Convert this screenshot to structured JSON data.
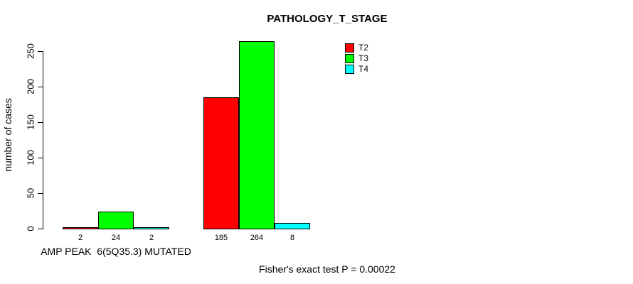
{
  "chart_data": {
    "type": "bar",
    "title": "PATHOLOGY_T_STAGE",
    "ylabel": "number of cases",
    "xlabel": "",
    "categories": [
      "AMP PEAK  6(5Q35.3) MUTATED",
      ""
    ],
    "series": [
      {
        "name": "T2",
        "color": "#ff0000",
        "values": [
          2,
          185
        ]
      },
      {
        "name": "T3",
        "color": "#00ff00",
        "values": [
          24,
          264
        ]
      },
      {
        "name": "T4",
        "color": "#00ffff",
        "values": [
          2,
          8
        ]
      }
    ],
    "bar_value_labels": [
      [
        2,
        24,
        2
      ],
      [
        185,
        264,
        8
      ]
    ],
    "ylim": [
      0,
      250
    ],
    "yticks": [
      0,
      50,
      100,
      150,
      200,
      250
    ],
    "bar_border_color": "#000000",
    "grid": false,
    "legend": {
      "position": "top-right-inside",
      "entries": [
        "T2",
        "T3",
        "T4"
      ]
    }
  },
  "footnote": {
    "text": "Fisher's exact test P = 0.00022"
  }
}
